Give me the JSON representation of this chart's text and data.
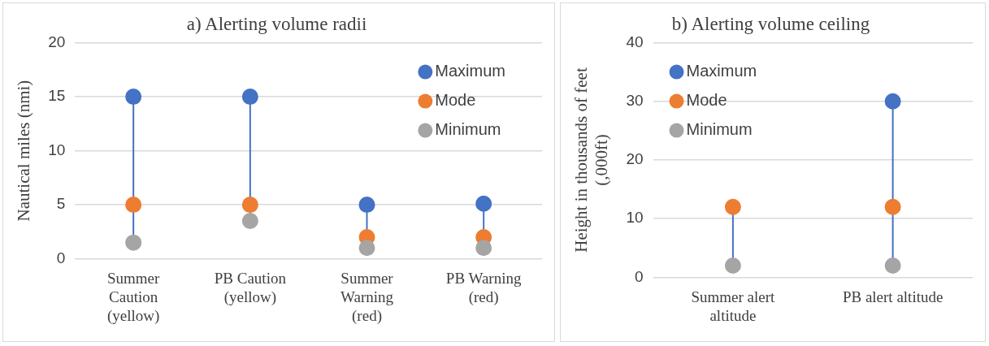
{
  "chart_data": [
    {
      "type": "scatter",
      "title": "a) Alerting volume radii",
      "ylabel": "Nautical miles (nmi)",
      "categories": [
        "Summer Caution (yellow)",
        "PB Caution (yellow)",
        "Summer Warning (red)",
        "PB Warning (red)"
      ],
      "series": [
        {
          "name": "Maximum",
          "color": "#4472c4",
          "values": [
            15,
            15,
            5,
            5.1
          ]
        },
        {
          "name": "Mode",
          "color": "#ed7d31",
          "values": [
            5,
            5,
            2,
            2
          ]
        },
        {
          "name": "Minimum",
          "color": "#a5a5a5",
          "values": [
            1.5,
            3.5,
            1,
            1
          ]
        }
      ],
      "ylim": [
        0,
        20
      ],
      "yticks": [
        0,
        5,
        10,
        15,
        20
      ],
      "grid": "y",
      "legend": "top right",
      "marker": "circle"
    },
    {
      "type": "scatter",
      "title": "b) Alerting volume ceiling",
      "ylabel": "Height in thousands of feet (,000ft)",
      "categories": [
        "Summer alert altitude",
        "PB alert altitude"
      ],
      "series": [
        {
          "name": "Maximum",
          "color": "#4472c4",
          "values": [
            null,
            30
          ]
        },
        {
          "name": "Mode",
          "color": "#ed7d31",
          "values": [
            12,
            12
          ]
        },
        {
          "name": "Minimum",
          "color": "#a5a5a5",
          "values": [
            2,
            2
          ]
        }
      ],
      "ylim": [
        0,
        40
      ],
      "yticks": [
        0,
        10,
        20,
        30,
        40
      ],
      "grid": "y",
      "legend": "top left",
      "marker": "circle"
    }
  ]
}
